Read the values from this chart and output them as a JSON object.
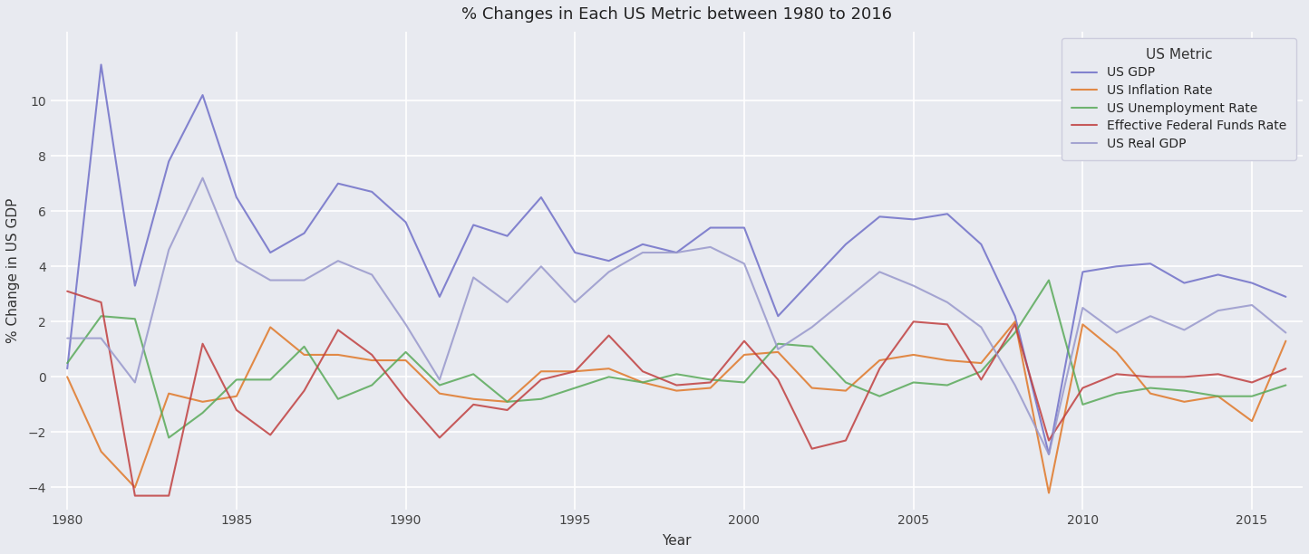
{
  "title": "% Changes in Each US Metric between 1980 to 2016",
  "xlabel": "Year",
  "ylabel": "% Change in US GDP",
  "legend_title": "US Metric",
  "background_color": "#e8eaf0",
  "years": [
    1980,
    1981,
    1982,
    1983,
    1984,
    1985,
    1986,
    1987,
    1988,
    1989,
    1990,
    1991,
    1992,
    1993,
    1994,
    1995,
    1996,
    1997,
    1998,
    1999,
    2000,
    2001,
    2002,
    2003,
    2004,
    2005,
    2006,
    2007,
    2008,
    2009,
    2010,
    2011,
    2012,
    2013,
    2014,
    2015,
    2016
  ],
  "series": {
    "US GDP": {
      "color": "#7070c8",
      "values": [
        0.3,
        11.3,
        3.3,
        7.8,
        10.2,
        6.5,
        4.5,
        5.2,
        7.0,
        6.7,
        5.6,
        2.9,
        5.5,
        5.1,
        6.5,
        4.5,
        4.2,
        4.8,
        4.5,
        5.4,
        5.4,
        2.2,
        3.5,
        4.8,
        5.8,
        5.7,
        5.9,
        4.8,
        2.2,
        -2.8,
        3.8,
        4.0,
        4.1,
        3.4,
        3.7,
        3.4,
        2.9
      ]
    },
    "US Inflation Rate": {
      "color": "#e07828",
      "values": [
        0.0,
        -2.7,
        -4.0,
        -0.6,
        -0.9,
        -0.7,
        1.8,
        0.8,
        0.8,
        0.6,
        0.6,
        -0.6,
        -0.8,
        -0.9,
        0.2,
        0.2,
        0.3,
        -0.2,
        -0.5,
        -0.4,
        0.8,
        0.9,
        -0.4,
        -0.5,
        0.6,
        0.8,
        0.6,
        0.5,
        2.0,
        -4.2,
        1.9,
        0.9,
        -0.6,
        -0.9,
        -0.7,
        -1.6,
        1.3
      ]
    },
    "US Unemployment Rate": {
      "color": "#5aaa5a",
      "values": [
        0.5,
        2.2,
        2.1,
        -2.2,
        -1.3,
        -0.1,
        -0.1,
        1.1,
        -0.8,
        -0.3,
        0.9,
        -0.3,
        0.1,
        -0.9,
        -0.8,
        -0.4,
        0.0,
        -0.2,
        0.1,
        -0.1,
        -0.2,
        1.2,
        1.1,
        -0.2,
        -0.7,
        -0.2,
        -0.3,
        0.2,
        1.6,
        3.5,
        -1.0,
        -0.6,
        -0.4,
        -0.5,
        -0.7,
        -0.7,
        -0.3
      ]
    },
    "Effective Federal Funds Rate": {
      "color": "#c04040",
      "values": [
        3.1,
        2.7,
        -4.3,
        -4.3,
        1.2,
        -1.2,
        -2.1,
        -0.5,
        1.7,
        0.8,
        -0.8,
        -2.2,
        -1.0,
        -1.2,
        -0.1,
        0.2,
        1.5,
        0.2,
        -0.3,
        -0.2,
        1.3,
        -0.1,
        -2.6,
        -2.3,
        0.3,
        2.0,
        1.9,
        -0.1,
        1.9,
        -2.3,
        -0.4,
        0.1,
        0.0,
        0.0,
        0.1,
        -0.2,
        0.3
      ]
    },
    "US Real GDP": {
      "color": "#9898cc",
      "values": [
        1.4,
        1.4,
        -0.2,
        4.6,
        7.2,
        4.2,
        3.5,
        3.5,
        4.2,
        3.7,
        1.9,
        -0.1,
        3.6,
        2.7,
        4.0,
        2.7,
        3.8,
        4.5,
        4.5,
        4.7,
        4.1,
        1.0,
        1.8,
        2.8,
        3.8,
        3.3,
        2.7,
        1.8,
        -0.3,
        -2.8,
        2.5,
        1.6,
        2.2,
        1.7,
        2.4,
        2.6,
        1.6
      ]
    }
  },
  "ylim": [
    -4.8,
    12.5
  ],
  "xlim": [
    1979.5,
    2016.5
  ],
  "xticks": [
    1980,
    1985,
    1990,
    1995,
    2000,
    2005,
    2010,
    2015
  ],
  "yticks": [
    -4,
    -2,
    0,
    2,
    4,
    6,
    8,
    10
  ]
}
